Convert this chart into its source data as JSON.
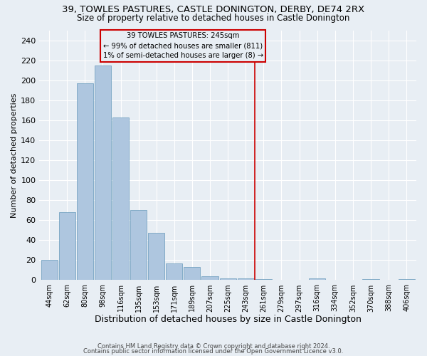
{
  "title1": "39, TOWLES PASTURES, CASTLE DONINGTON, DERBY, DE74 2RX",
  "title2": "Size of property relative to detached houses in Castle Donington",
  "xlabel": "Distribution of detached houses by size in Castle Donington",
  "ylabel": "Number of detached properties",
  "footer1": "Contains HM Land Registry data © Crown copyright and database right 2024.",
  "footer2": "Contains public sector information licensed under the Open Government Licence v3.0.",
  "categories": [
    "44sqm",
    "62sqm",
    "80sqm",
    "98sqm",
    "116sqm",
    "135sqm",
    "153sqm",
    "171sqm",
    "189sqm",
    "207sqm",
    "225sqm",
    "243sqm",
    "261sqm",
    "279sqm",
    "297sqm",
    "316sqm",
    "334sqm",
    "352sqm",
    "370sqm",
    "388sqm",
    "406sqm"
  ],
  "values": [
    20,
    68,
    197,
    215,
    163,
    70,
    47,
    17,
    13,
    4,
    2,
    2,
    1,
    0,
    0,
    2,
    0,
    0,
    1,
    0,
    1
  ],
  "bar_color": "#aec6df",
  "bar_edge_color": "#6699bb",
  "property_line_x": 11.5,
  "annotation_text1": "39 TOWLES PASTURES: 245sqm",
  "annotation_text2": "← 99% of detached houses are smaller (811)",
  "annotation_text3": "1% of semi-detached houses are larger (8) →",
  "annotation_box_color": "#cc0000",
  "ylim": [
    0,
    250
  ],
  "yticks": [
    0,
    20,
    40,
    60,
    80,
    100,
    120,
    140,
    160,
    180,
    200,
    220,
    240
  ],
  "bg_color": "#e8eef4",
  "grid_color": "#ffffff",
  "title1_fontsize": 9.5,
  "title2_fontsize": 8.5,
  "xlabel_fontsize": 9,
  "ylabel_fontsize": 8
}
